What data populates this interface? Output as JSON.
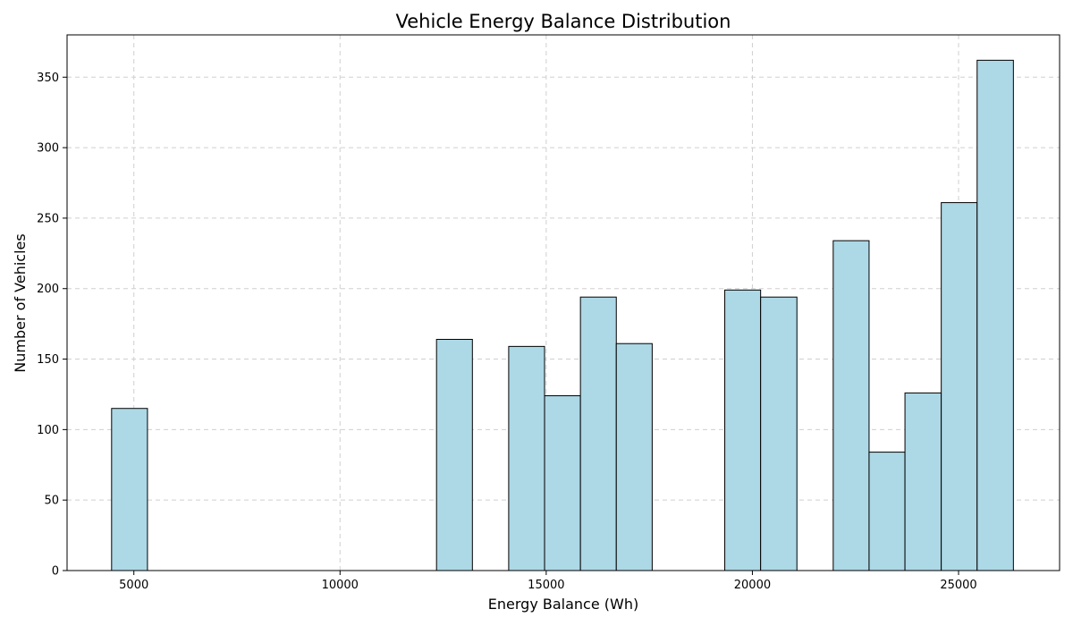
{
  "chart_data": {
    "type": "bar",
    "title": "Vehicle Energy Balance Distribution",
    "xlabel": "Energy Balance (Wh)",
    "ylabel": "Number of Vehicles",
    "xlim": [
      3380,
      27450
    ],
    "ylim": [
      0,
      380
    ],
    "xticks": [
      5000,
      10000,
      15000,
      20000,
      25000
    ],
    "yticks": [
      0,
      50,
      100,
      150,
      200,
      250,
      300,
      350
    ],
    "grid": true,
    "bar_color": "#ADD8E6",
    "edge_color": "#000000",
    "bins": [
      {
        "start": 4460,
        "end": 5330,
        "count": 115
      },
      {
        "start": 12340,
        "end": 13210,
        "count": 164
      },
      {
        "start": 14090,
        "end": 14960,
        "count": 159
      },
      {
        "start": 14960,
        "end": 15830,
        "count": 124
      },
      {
        "start": 15830,
        "end": 16700,
        "count": 194
      },
      {
        "start": 16700,
        "end": 17570,
        "count": 161
      },
      {
        "start": 19330,
        "end": 20200,
        "count": 199
      },
      {
        "start": 20200,
        "end": 21080,
        "count": 194
      },
      {
        "start": 21960,
        "end": 22830,
        "count": 234
      },
      {
        "start": 22830,
        "end": 23700,
        "count": 84
      },
      {
        "start": 23700,
        "end": 24580,
        "count": 126
      },
      {
        "start": 24580,
        "end": 25450,
        "count": 261
      },
      {
        "start": 25450,
        "end": 26330,
        "count": 362
      }
    ]
  }
}
